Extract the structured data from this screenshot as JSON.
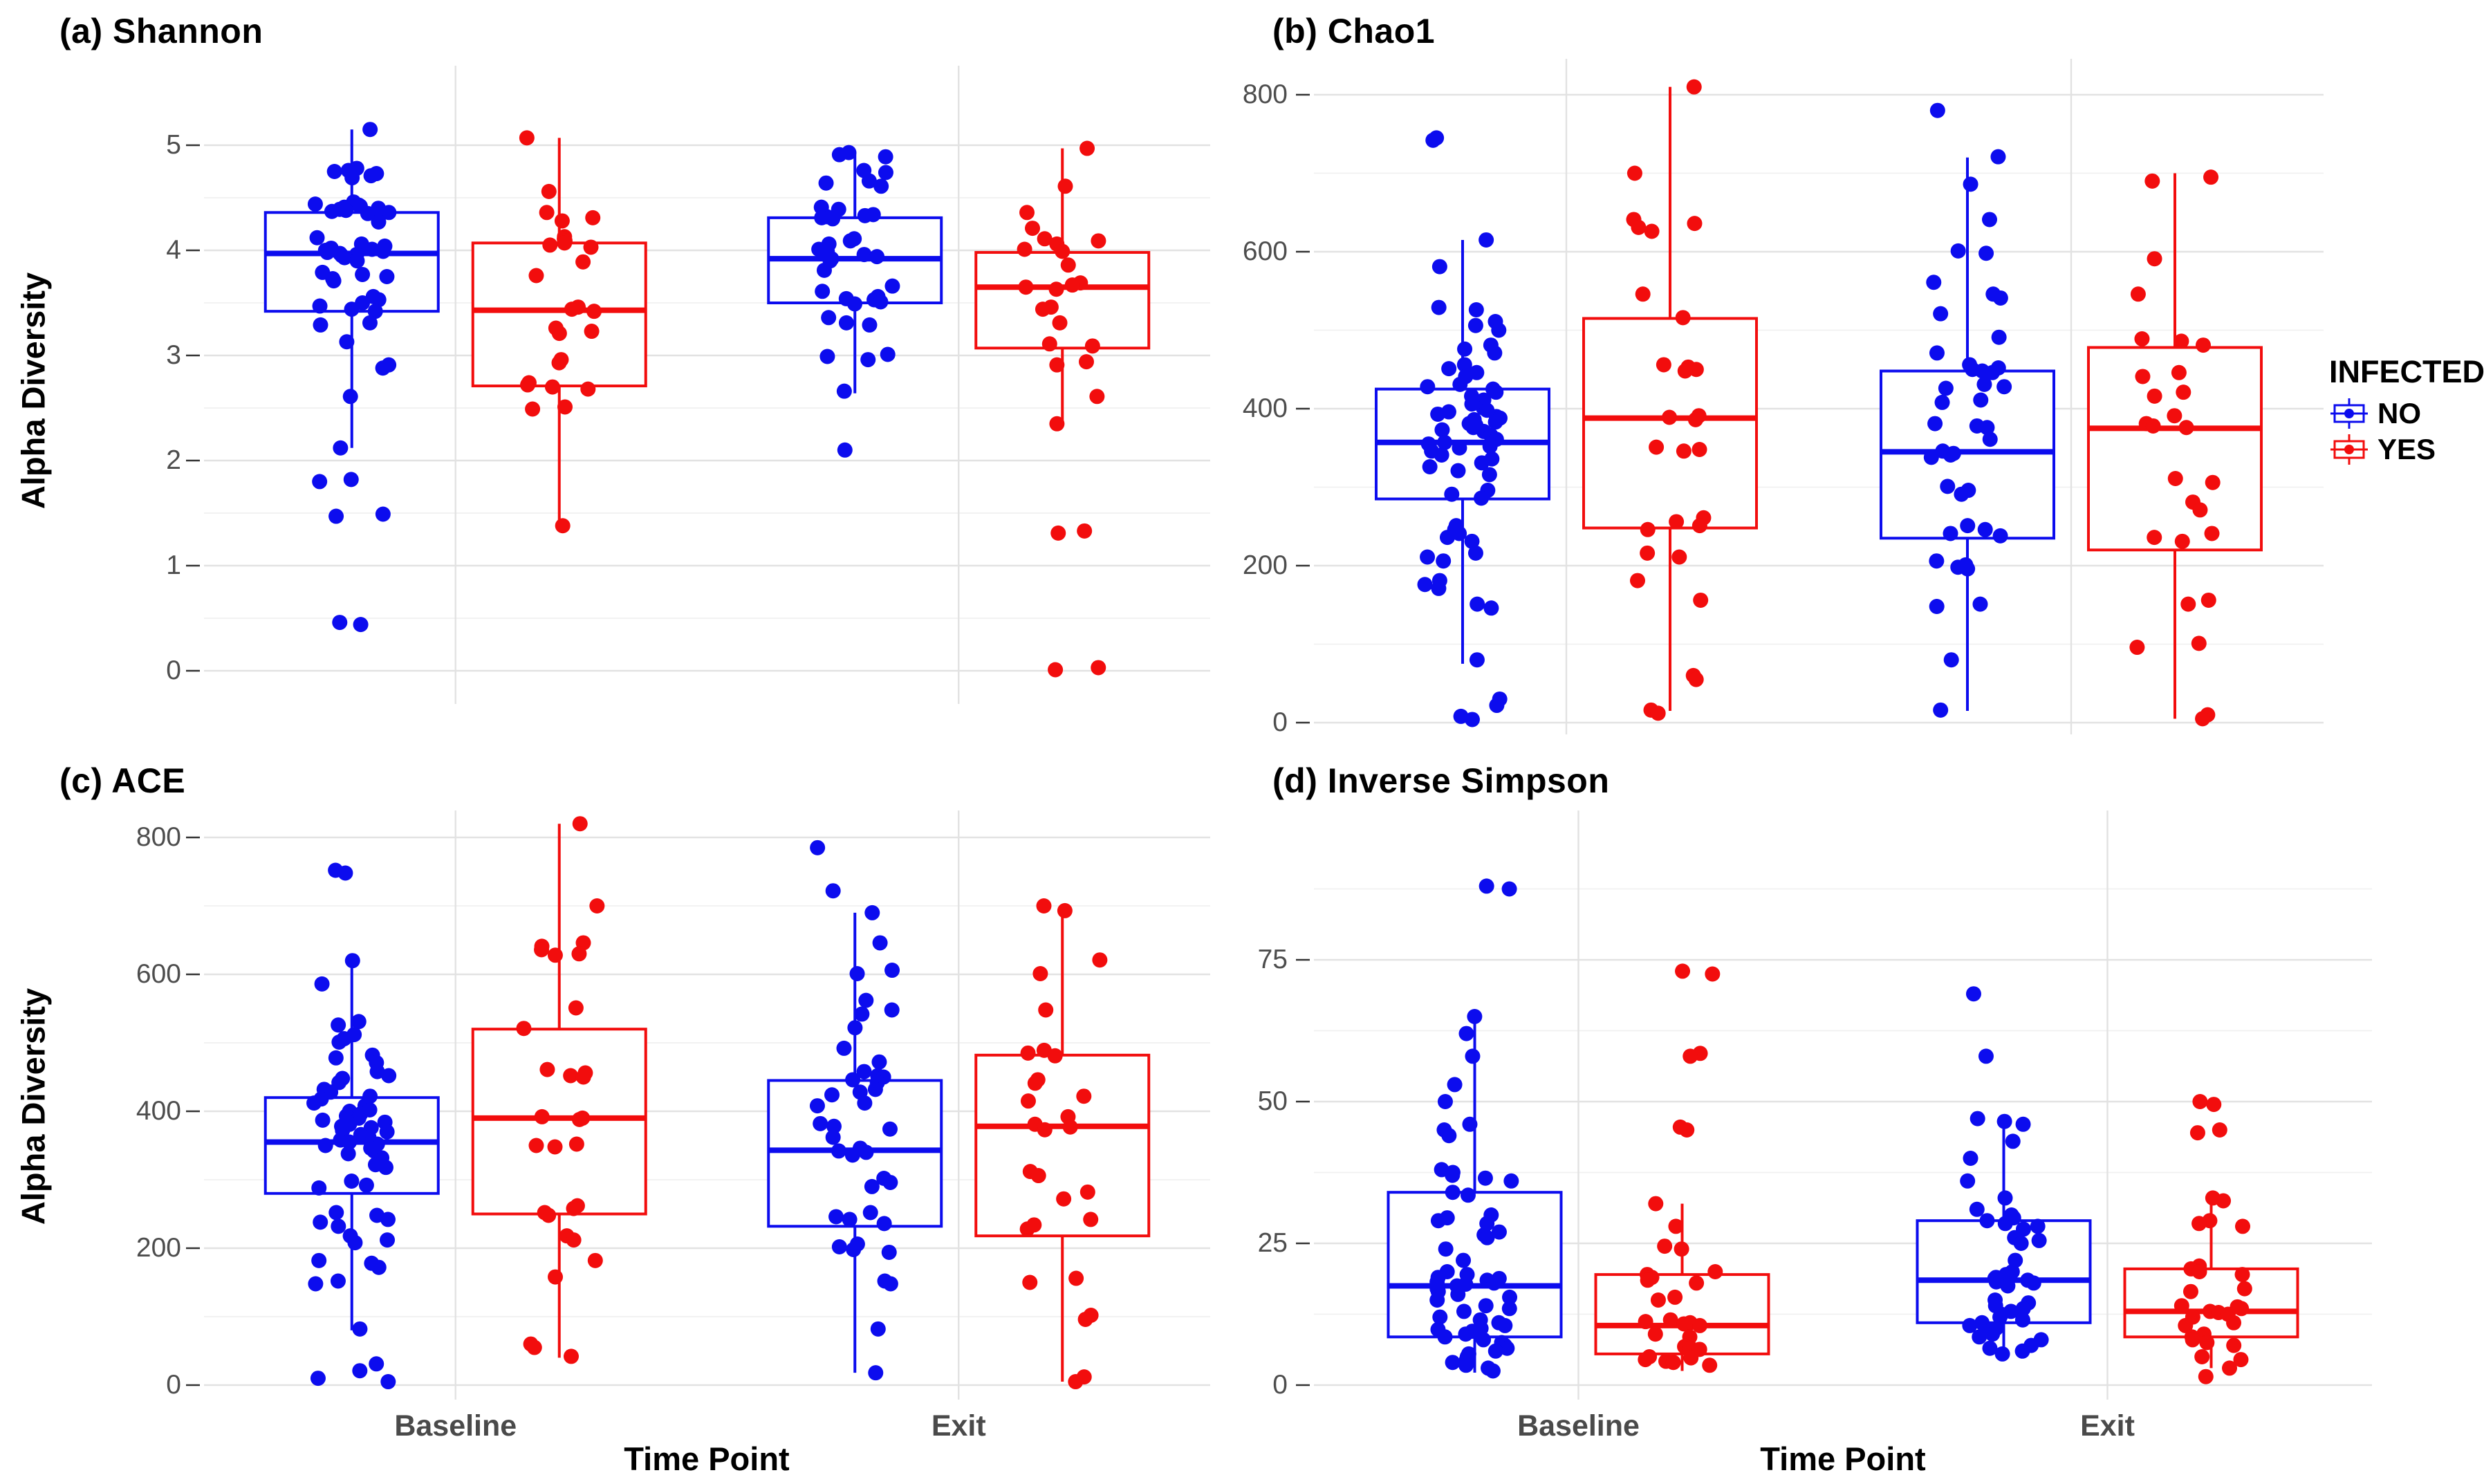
{
  "colors": {
    "no": "#0c0cee",
    "yes": "#f20d0d",
    "grid_major": "#e2e2e2",
    "grid_minor": "#f0f0f0",
    "tick_mark": "#333333",
    "tick_label": "#4d4d4d",
    "category_label": "#4a4a4a",
    "title": "#000000",
    "background": "#ffffff"
  },
  "legend": {
    "title": "INFECTED",
    "items": [
      {
        "label": "NO",
        "series": "no"
      },
      {
        "label": "YES",
        "series": "yes"
      }
    ]
  },
  "shared": {
    "y_axis_title": "Alpha Diversity",
    "x_axis_title": "Time Point",
    "x_categories": [
      "Baseline",
      "Exit"
    ]
  },
  "chart_data": [
    {
      "id": "a",
      "title": "(a) Shannon",
      "type": "boxplot-jitter",
      "ylabel": "Alpha Diversity",
      "xlabel": "Time Point",
      "ylim": [
        0,
        5.3
      ],
      "yticks": [
        0,
        1,
        2,
        3,
        4,
        5
      ],
      "minor_step": 0.5,
      "show_x_labels": false,
      "show_y_title": true,
      "legend_position": "none",
      "groups": [
        {
          "category": "Baseline",
          "infected": "NO",
          "box": {
            "whisker_low": 2.12,
            "q1": 3.42,
            "median": 3.97,
            "q3": 4.36,
            "whisker_high": 5.15
          },
          "points": [
            5.15,
            4.78,
            4.76,
            4.75,
            4.73,
            4.71,
            4.69,
            4.46,
            4.45,
            4.44,
            4.43,
            4.42,
            4.41,
            4.4,
            4.39,
            4.38,
            4.37,
            4.36,
            4.35,
            4.34,
            4.27,
            4.12,
            4.06,
            4.04,
            4.02,
            4.01,
            4.0,
            3.99,
            3.98,
            3.97,
            3.96,
            3.95,
            3.93,
            3.9,
            3.79,
            3.77,
            3.75,
            3.73,
            3.71,
            3.56,
            3.53,
            3.5,
            3.47,
            3.44,
            3.42,
            3.31,
            3.29,
            3.13,
            2.91,
            2.88,
            2.61,
            2.12,
            1.82,
            1.8,
            1.49,
            1.47,
            0.46,
            0.44
          ]
        },
        {
          "category": "Baseline",
          "infected": "YES",
          "box": {
            "whisker_low": 1.38,
            "q1": 2.71,
            "median": 3.43,
            "q3": 4.07,
            "whisker_high": 5.07
          },
          "points": [
            5.07,
            4.56,
            4.36,
            4.31,
            4.28,
            4.13,
            4.11,
            4.09,
            4.07,
            4.05,
            4.03,
            3.89,
            3.76,
            3.46,
            3.44,
            3.42,
            3.26,
            3.23,
            3.21,
            2.96,
            2.93,
            2.74,
            2.72,
            2.7,
            2.68,
            2.51,
            2.49,
            1.38
          ]
        },
        {
          "category": "Exit",
          "infected": "NO",
          "box": {
            "whisker_low": 2.64,
            "q1": 3.5,
            "median": 3.92,
            "q3": 4.31,
            "whisker_high": 4.93
          },
          "points": [
            4.93,
            4.91,
            4.89,
            4.76,
            4.74,
            4.66,
            4.64,
            4.61,
            4.41,
            4.39,
            4.34,
            4.33,
            4.32,
            4.31,
            4.3,
            4.11,
            4.09,
            4.06,
            4.01,
            3.99,
            3.96,
            3.94,
            3.92,
            3.9,
            3.81,
            3.66,
            3.61,
            3.56,
            3.54,
            3.53,
            3.51,
            3.49,
            3.36,
            3.31,
            3.29,
            3.01,
            2.99,
            2.96,
            2.66,
            2.1
          ]
        },
        {
          "category": "Exit",
          "infected": "YES",
          "box": {
            "whisker_low": 2.33,
            "q1": 3.07,
            "median": 3.65,
            "q3": 3.98,
            "whisker_high": 4.97
          },
          "points": [
            4.97,
            4.61,
            4.36,
            4.21,
            4.11,
            4.09,
            4.06,
            4.01,
            3.99,
            3.86,
            3.69,
            3.67,
            3.65,
            3.63,
            3.46,
            3.44,
            3.31,
            3.11,
            3.09,
            2.94,
            2.91,
            2.61,
            2.35,
            1.33,
            1.31,
            0.03,
            0.01
          ]
        }
      ]
    },
    {
      "id": "b",
      "title": "(b) Chao1",
      "type": "boxplot-jitter",
      "ylabel": "",
      "xlabel": "",
      "ylim": [
        0,
        815
      ],
      "yticks": [
        0,
        200,
        400,
        600,
        800
      ],
      "minor_step": 100,
      "show_x_labels": false,
      "show_y_title": false,
      "legend_position": "right",
      "groups": [
        {
          "category": "Baseline",
          "infected": "NO",
          "box": {
            "whisker_low": 75,
            "q1": 285,
            "median": 357,
            "q3": 425,
            "whisker_high": 615
          },
          "points": [
            745,
            742,
            615,
            581,
            529,
            526,
            511,
            506,
            500,
            481,
            476,
            471,
            456,
            451,
            446,
            441,
            431,
            428,
            425,
            421,
            416,
            411,
            406,
            401,
            398,
            396,
            393,
            390,
            388,
            386,
            383,
            381,
            379,
            376,
            373,
            371,
            366,
            361,
            357,
            355,
            352,
            350,
            346,
            341,
            336,
            331,
            326,
            321,
            316,
            296,
            291,
            286,
            251,
            246,
            241,
            236,
            231,
            216,
            211,
            206,
            181,
            176,
            171,
            151,
            146,
            80,
            30,
            22,
            8,
            4
          ]
        },
        {
          "category": "Baseline",
          "infected": "YES",
          "box": {
            "whisker_low": 15,
            "q1": 248,
            "median": 388,
            "q3": 515,
            "whisker_high": 810
          },
          "points": [
            810,
            700,
            641,
            636,
            631,
            626,
            546,
            516,
            456,
            453,
            450,
            448,
            391,
            389,
            386,
            351,
            348,
            346,
            261,
            256,
            251,
            246,
            216,
            211,
            181,
            156,
            60,
            55,
            16,
            12
          ]
        },
        {
          "category": "Exit",
          "infected": "NO",
          "box": {
            "whisker_low": 15,
            "q1": 235,
            "median": 345,
            "q3": 448,
            "whisker_high": 720
          },
          "points": [
            780,
            721,
            686,
            641,
            601,
            598,
            561,
            546,
            541,
            521,
            491,
            471,
            456,
            452,
            450,
            448,
            446,
            431,
            428,
            426,
            411,
            408,
            381,
            378,
            376,
            361,
            346,
            343,
            341,
            338,
            301,
            296,
            291,
            251,
            246,
            241,
            238,
            206,
            201,
            198,
            196,
            151,
            148,
            80,
            16
          ]
        },
        {
          "category": "Exit",
          "infected": "YES",
          "box": {
            "whisker_low": 5,
            "q1": 220,
            "median": 375,
            "q3": 478,
            "whisker_high": 700
          },
          "points": [
            695,
            690,
            591,
            546,
            489,
            486,
            481,
            446,
            441,
            421,
            416,
            391,
            381,
            378,
            376,
            311,
            306,
            281,
            271,
            241,
            236,
            231,
            156,
            151,
            101,
            96,
            10,
            5
          ]
        }
      ]
    },
    {
      "id": "c",
      "title": "(c) ACE",
      "type": "boxplot-jitter",
      "ylabel": "Alpha Diversity",
      "xlabel": "Time Point",
      "ylim": [
        0,
        830
      ],
      "yticks": [
        0,
        200,
        400,
        600,
        800
      ],
      "minor_step": 100,
      "show_x_labels": true,
      "show_y_title": true,
      "legend_position": "none",
      "groups": [
        {
          "category": "Baseline",
          "infected": "NO",
          "box": {
            "whisker_low": 80,
            "q1": 280,
            "median": 355,
            "q3": 420,
            "whisker_high": 620
          },
          "points": [
            752,
            748,
            620,
            586,
            531,
            526,
            512,
            506,
            501,
            482,
            478,
            471,
            458,
            452,
            448,
            442,
            432,
            428,
            422,
            418,
            412,
            408,
            402,
            400,
            396,
            393,
            390,
            387,
            384,
            381,
            378,
            376,
            372,
            370,
            366,
            362,
            358,
            355,
            352,
            350,
            346,
            342,
            338,
            332,
            328,
            322,
            318,
            298,
            292,
            288,
            252,
            248,
            242,
            238,
            232,
            218,
            212,
            208,
            182,
            178,
            172,
            152,
            148,
            82,
            31,
            21,
            10,
            5
          ]
        },
        {
          "category": "Baseline",
          "infected": "YES",
          "box": {
            "whisker_low": 40,
            "q1": 250,
            "median": 390,
            "q3": 520,
            "whisker_high": 820
          },
          "points": [
            820,
            700,
            646,
            641,
            636,
            630,
            628,
            551,
            521,
            461,
            456,
            452,
            450,
            392,
            390,
            388,
            352,
            350,
            348,
            262,
            258,
            252,
            248,
            218,
            212,
            182,
            158,
            60,
            55,
            42
          ]
        },
        {
          "category": "Exit",
          "infected": "NO",
          "box": {
            "whisker_low": 18,
            "q1": 232,
            "median": 343,
            "q3": 445,
            "whisker_high": 690
          },
          "points": [
            785,
            722,
            690,
            646,
            606,
            601,
            562,
            548,
            542,
            522,
            492,
            472,
            458,
            452,
            450,
            446,
            442,
            432,
            428,
            424,
            412,
            408,
            382,
            378,
            374,
            362,
            346,
            342,
            340,
            336,
            302,
            296,
            290,
            252,
            246,
            242,
            236,
            206,
            202,
            198,
            194,
            152,
            148,
            82,
            18
          ]
        },
        {
          "category": "Exit",
          "infected": "YES",
          "box": {
            "whisker_low": 5,
            "q1": 218,
            "median": 378,
            "q3": 482,
            "whisker_high": 700
          },
          "points": [
            700,
            693,
            621,
            601,
            548,
            489,
            485,
            481,
            446,
            441,
            422,
            415,
            392,
            381,
            377,
            373,
            312,
            306,
            282,
            272,
            242,
            234,
            228,
            156,
            150,
            102,
            96,
            12,
            5
          ]
        }
      ]
    },
    {
      "id": "d",
      "title": "(d) Inverse Simpson",
      "type": "boxplot-jitter",
      "ylabel": "",
      "xlabel": "Time Point",
      "ylim": [
        0,
        90
      ],
      "yticks": [
        0,
        25,
        50,
        75
      ],
      "minor_step": 12.5,
      "show_x_labels": true,
      "show_y_title": false,
      "legend_position": "none",
      "groups": [
        {
          "category": "Baseline",
          "infected": "NO",
          "box": {
            "whisker_low": 2.2,
            "q1": 8.5,
            "median": 17.5,
            "q3": 34,
            "whisker_high": 65
          },
          "points": [
            88,
            87.5,
            65,
            62,
            58,
            53,
            50,
            46,
            45,
            44,
            38,
            37.5,
            37,
            36.5,
            36,
            34,
            33.5,
            30,
            29.5,
            29,
            28.5,
            27,
            26.5,
            26,
            24,
            22,
            20,
            19.5,
            19,
            18.8,
            18.5,
            18.2,
            18,
            17.8,
            17.5,
            17,
            16.5,
            16,
            15.5,
            15,
            14,
            13.5,
            13,
            12,
            11.5,
            11,
            10.5,
            10,
            9.8,
            9.5,
            9,
            8.5,
            8,
            7.5,
            7,
            6.5,
            6,
            5.5,
            5,
            4.5,
            4,
            3.5,
            3,
            2.5
          ]
        },
        {
          "category": "Baseline",
          "infected": "YES",
          "box": {
            "whisker_low": 2.5,
            "q1": 5.5,
            "median": 10.5,
            "q3": 19.5,
            "whisker_high": 32
          },
          "points": [
            73,
            72.5,
            58.5,
            58,
            45.5,
            45,
            32,
            28,
            24.5,
            24,
            20,
            19.5,
            19,
            18.5,
            18,
            15.5,
            15,
            11.5,
            11.2,
            11,
            10.8,
            10.5,
            9,
            8.5,
            7,
            6.8,
            6.5,
            6.3,
            5,
            4.8,
            4.5,
            4.2,
            4,
            3.5
          ]
        },
        {
          "category": "Exit",
          "infected": "NO",
          "box": {
            "whisker_low": 5,
            "q1": 11,
            "median": 18.5,
            "q3": 29,
            "whisker_high": 47
          },
          "points": [
            69,
            58,
            47,
            46.5,
            46,
            43,
            40,
            36,
            33,
            31,
            30,
            29.5,
            29,
            28.5,
            28,
            27.5,
            26,
            25.5,
            25,
            22,
            20,
            19.5,
            19,
            18.8,
            18.5,
            18.2,
            18,
            17.5,
            15,
            14.5,
            14,
            13.5,
            13,
            12.5,
            12,
            11.5,
            11,
            10.5,
            10,
            9.5,
            9,
            8.5,
            8,
            7,
            6.5,
            6,
            5.5
          ]
        },
        {
          "category": "Exit",
          "infected": "YES",
          "box": {
            "whisker_low": 3,
            "q1": 8.5,
            "median": 13,
            "q3": 20.5,
            "whisker_high": 33
          },
          "points": [
            50,
            49.5,
            45,
            44.5,
            33,
            32.5,
            29,
            28.5,
            28,
            21,
            20.5,
            20,
            19.5,
            17,
            16.5,
            14,
            13.8,
            13.5,
            13,
            12.8,
            12.5,
            12,
            11,
            10.5,
            9,
            8.5,
            8,
            7.5,
            7,
            5,
            4.5,
            3,
            1.5
          ]
        }
      ]
    }
  ]
}
